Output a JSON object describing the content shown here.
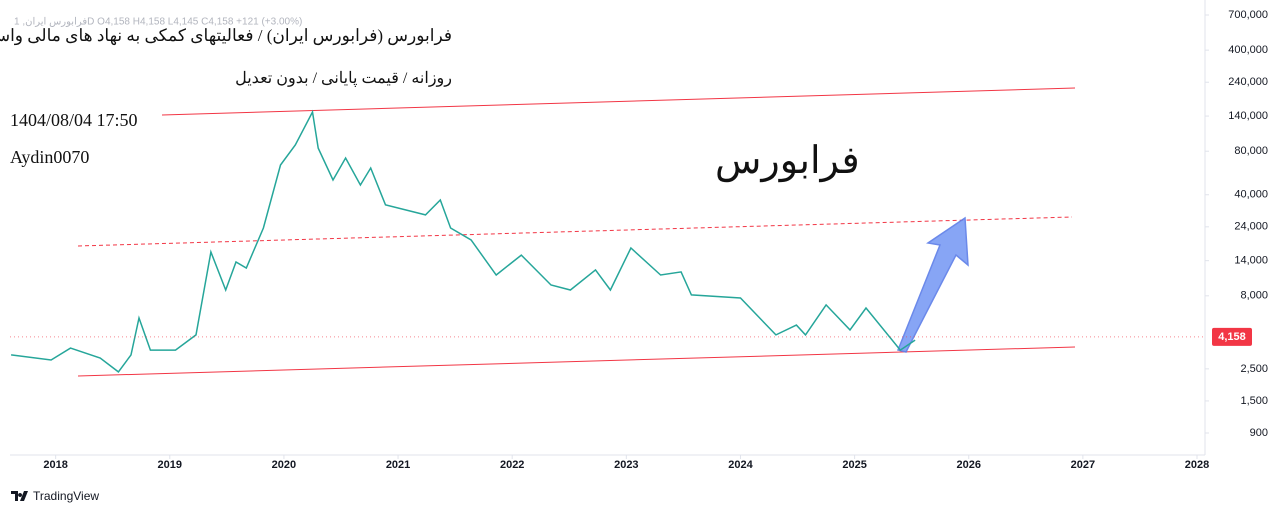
{
  "chart_data": {
    "type": "line",
    "title": "فرابورس (فرابورس ایران) / فعالیتهای کمکی به نهاد های مالی واسط",
    "subtitle": "روزانه / قیمت پایانی / بدون تعدیل",
    "timestamp": "1404/08/04 17:50",
    "author": "Aydin0070",
    "watermark": "فرابورس",
    "ohlc": "فرابورس ایران, 1D  O4,158  H4,158  L4,145  C4,158  +121 (+3.00%)",
    "brand": "TradingView",
    "color": "#26a69a",
    "log_scale": true,
    "x": [
      2017.61,
      2017.96,
      2018.13,
      2018.39,
      2018.55,
      2018.66,
      2018.73,
      2018.83,
      2019.05,
      2019.23,
      2019.36,
      2019.49,
      2019.58,
      2019.67,
      2019.82,
      2019.97,
      2020.1,
      2020.25,
      2020.3,
      2020.43,
      2020.54,
      2020.67,
      2020.76,
      2020.89,
      2021.24,
      2021.37,
      2021.46,
      2021.64,
      2021.86,
      2022.08,
      2022.34,
      2022.51,
      2022.73,
      2022.86,
      2023.04,
      2023.3,
      2023.48,
      2023.57,
      2024.0,
      2024.31,
      2024.49,
      2024.57,
      2024.75,
      2024.96,
      2025.1,
      2025.4,
      2025.53
    ],
    "values": [
      3120,
      2880,
      3480,
      2970,
      2380,
      3120,
      5620,
      3370,
      3370,
      4290,
      16070,
      8770,
      13700,
      12450,
      23550,
      64270,
      88300,
      149300,
      84100,
      50600,
      71800,
      46700,
      61200,
      34000,
      29000,
      36800,
      23550,
      19450,
      11140,
      15300,
      9500,
      8770,
      12080,
      8770,
      17140,
      11140,
      11700,
      8110,
      7730,
      4290,
      5020,
      4290,
      6920,
      4650,
      6590,
      3370,
      3950
    ],
    "last_value": 4158,
    "last_value_label": "4,158",
    "xlim": [
      2017.6,
      2028.07
    ],
    "xticks": [
      2018,
      2019,
      2020,
      2021,
      2022,
      2023,
      2024,
      2025,
      2026,
      2027,
      2028
    ],
    "ylim": [
      634,
      889000
    ],
    "yticks": [
      {
        "value": 700000,
        "label": "700,000"
      },
      {
        "value": 400000,
        "label": "400,000"
      },
      {
        "value": 240000,
        "label": "240,000"
      },
      {
        "value": 140000,
        "label": "140,000"
      },
      {
        "value": 80000,
        "label": "80,000"
      },
      {
        "value": 40000,
        "label": "40,000"
      },
      {
        "value": 24000,
        "label": "24,000"
      },
      {
        "value": 14000,
        "label": "14,000"
      },
      {
        "value": 8000,
        "label": "8,000"
      },
      {
        "value": 2500,
        "label": "2,500"
      },
      {
        "value": 1500,
        "label": "1,500"
      },
      900
    ]
  }
}
